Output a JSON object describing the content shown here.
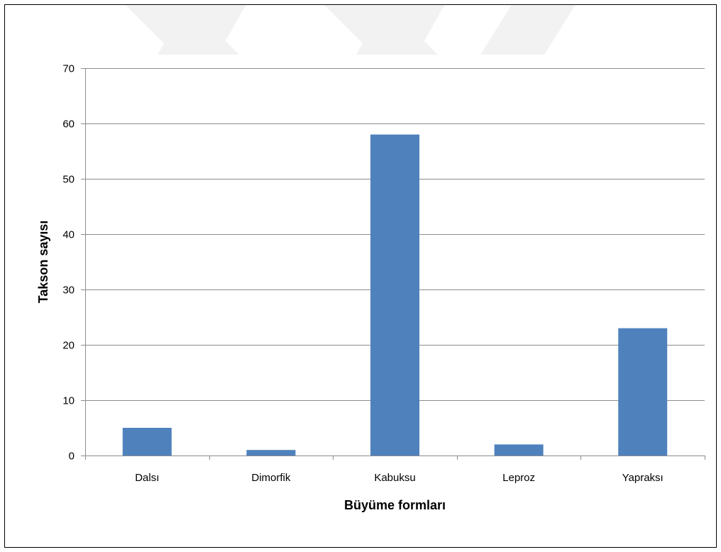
{
  "chart_data": {
    "type": "bar",
    "title": "",
    "xlabel": "Büyüme formları",
    "ylabel": "Takson sayısı",
    "categories": [
      "Dalsı",
      "Dimorfik",
      "Kabuksu",
      "Leproz",
      "Yapraksı"
    ],
    "values": [
      5,
      1,
      58,
      2,
      23
    ],
    "ylim": [
      0,
      70
    ],
    "yticks": [
      0,
      10,
      20,
      30,
      40,
      50,
      60,
      70
    ],
    "ytick_labels": [
      "0",
      "10",
      "20",
      "30",
      "40",
      "50",
      "60",
      "70"
    ],
    "grid": true,
    "legend": "none",
    "bar_color": "#4F81BD",
    "grid_color": "#8C8C8C",
    "watermark_color": "#F2F2F2"
  }
}
